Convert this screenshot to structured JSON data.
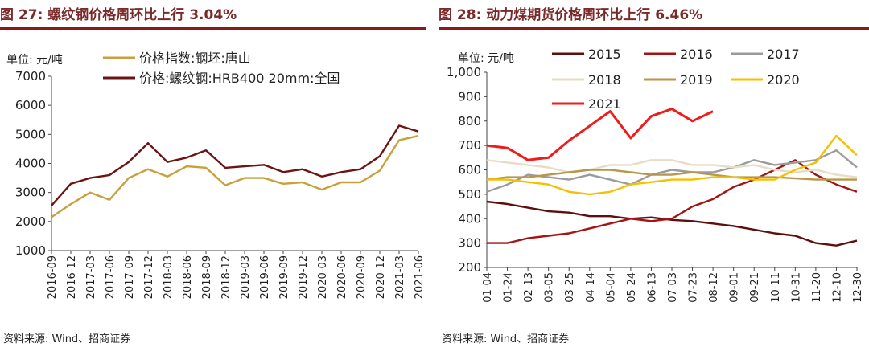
{
  "left": {
    "title": "图 27:  螺纹钢价格周环比上行 3.04%",
    "unit": "单位:  元/吨",
    "source": "资料来源:  Wind、招商证券",
    "chart_data": {
      "type": "line",
      "title": "图 27:  螺纹钢价格周环比上行 3.04%",
      "ylabel": "单位:  元/吨",
      "ylim": [
        1000,
        7000
      ],
      "yticks": [
        "1000",
        "2000",
        "3000",
        "4000",
        "5000",
        "6000",
        "7000"
      ],
      "categories": [
        "2016-09",
        "2016-12",
        "2017-03",
        "2017-06",
        "2017-09",
        "2017-12",
        "2018-03",
        "2018-06",
        "2018-09",
        "2018-12",
        "2019-03",
        "2019-06",
        "2019-09",
        "2019-12",
        "2020-03",
        "2020-06",
        "2020-09",
        "2020-12",
        "2021-03",
        "2021-06"
      ],
      "series": [
        {
          "name": "价格指数:钢坯:唐山",
          "color": "#c8a13c",
          "values": [
            2150,
            2600,
            3000,
            2750,
            3500,
            3800,
            3550,
            3900,
            3850,
            3250,
            3500,
            3500,
            3300,
            3350,
            3100,
            3350,
            3350,
            3750,
            4800,
            4950
          ]
        },
        {
          "name": "价格:螺纹钢:HRB400 20mm:全国",
          "color": "#6b1414",
          "values": [
            2550,
            3300,
            3500,
            3600,
            4050,
            4700,
            4050,
            4200,
            4450,
            3850,
            3900,
            3950,
            3700,
            3800,
            3550,
            3700,
            3800,
            4250,
            5300,
            5100
          ]
        }
      ]
    }
  },
  "right": {
    "title": "图 28:  动力煤期货价格周环比上行 6.46%",
    "unit": "单位:  元/吨",
    "source": "资料来源:  Wind、招商证券",
    "chart_data": {
      "type": "line",
      "title": "图 28:  动力煤期货价格周环比上行 6.46%",
      "ylabel": "单位:  元/吨",
      "ylim": [
        200,
        1000
      ],
      "yticks": [
        "200",
        "300",
        "400",
        "500",
        "600",
        "700",
        "800",
        "900",
        "1,000"
      ],
      "categories": [
        "01-04",
        "01-24",
        "02-13",
        "03-05",
        "03-25",
        "04-14",
        "05-04",
        "05-24",
        "06-13",
        "07-03",
        "07-23",
        "08-12",
        "09-01",
        "09-21",
        "10-11",
        "10-31",
        "11-20",
        "12-10",
        "12-30"
      ],
      "series": [
        {
          "name": "2015",
          "color": "#5c0f0f",
          "values": [
            470,
            460,
            445,
            430,
            425,
            410,
            410,
            400,
            405,
            395,
            390,
            380,
            370,
            355,
            340,
            330,
            300,
            290,
            310
          ]
        },
        {
          "name": "2016",
          "color": "#a31515",
          "values": [
            300,
            300,
            320,
            330,
            340,
            360,
            380,
            400,
            390,
            400,
            450,
            480,
            530,
            560,
            600,
            640,
            580,
            540,
            510
          ]
        },
        {
          "name": "2017",
          "color": "#9b9b9b",
          "values": [
            510,
            540,
            580,
            570,
            560,
            580,
            560,
            540,
            580,
            600,
            590,
            590,
            610,
            640,
            620,
            630,
            640,
            680,
            610
          ]
        },
        {
          "name": "2018",
          "color": "#e8dcc4",
          "values": [
            640,
            630,
            620,
            610,
            590,
            600,
            620,
            620,
            640,
            640,
            620,
            620,
            610,
            620,
            600,
            590,
            600,
            580,
            570
          ]
        },
        {
          "name": "2019",
          "color": "#b8964a",
          "values": [
            560,
            570,
            570,
            580,
            590,
            600,
            600,
            590,
            580,
            580,
            590,
            580,
            570,
            570,
            570,
            565,
            560,
            560,
            560
          ]
        },
        {
          "name": "2020",
          "color": "#f5c000",
          "values": [
            560,
            560,
            550,
            540,
            510,
            500,
            510,
            540,
            550,
            560,
            560,
            570,
            570,
            560,
            560,
            600,
            630,
            740,
            660
          ]
        },
        {
          "name": "2021",
          "color": "#ee1c1c",
          "values": [
            700,
            690,
            640,
            650,
            720,
            780,
            840,
            730,
            820,
            850,
            800,
            840,
            null,
            null,
            null,
            null,
            null,
            null,
            null
          ]
        }
      ]
    }
  }
}
